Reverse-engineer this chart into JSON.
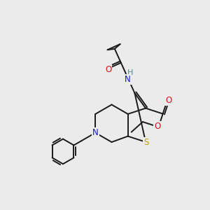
{
  "bg_color": "#ebebeb",
  "bond_color": "#1a1a1a",
  "atom_colors": {
    "N": "#1515cc",
    "O": "#cc1515",
    "S": "#b8a000",
    "H": "#4a8888",
    "C": "#1a1a1a"
  },
  "figsize": [
    3.0,
    3.0
  ],
  "dpi": 100
}
